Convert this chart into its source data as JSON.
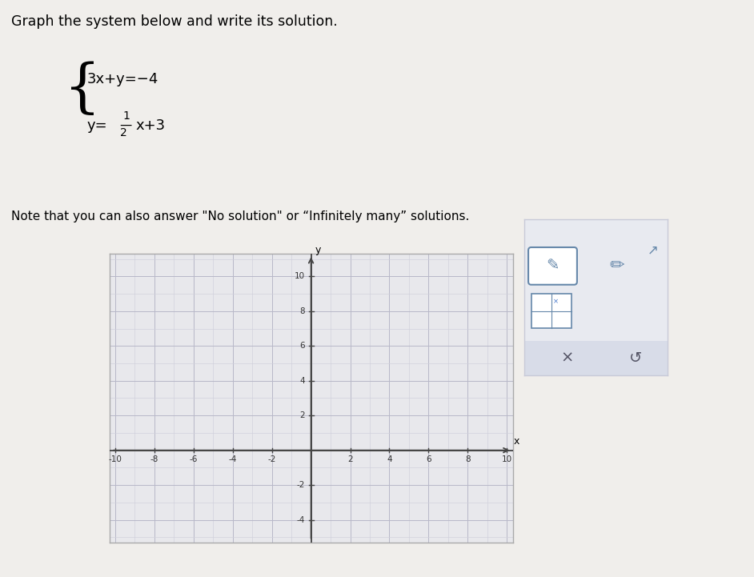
{
  "title": "Graph the system below and write its solution.",
  "eq1_top": "3x+y=-4",
  "eq2_line1": "1",
  "eq2_line2": "y=—x+3",
  "eq2_line3": "2",
  "note": "Note that you can also answer \"No solution\" or \"Infinitely many\" solutions.",
  "xlim": [
    -10,
    10
  ],
  "ylim": [
    -5,
    11
  ],
  "xticks": [
    -10,
    -8,
    -6,
    -4,
    -2,
    2,
    4,
    6,
    8,
    10
  ],
  "yticks": [
    -4,
    -2,
    2,
    4,
    6,
    8,
    10
  ],
  "bg_color": "#f0eeeb",
  "plot_bg": "#e8e8ec",
  "grid_major_color": "#b8b8c8",
  "grid_minor_color": "#d0d0dc",
  "axis_color": "#444444",
  "border_color": "#aaaaaa",
  "panel_bg": "#e8eaf0",
  "panel_border": "#c8cad8",
  "figsize": [
    9.42,
    7.21
  ],
  "dpi": 100
}
